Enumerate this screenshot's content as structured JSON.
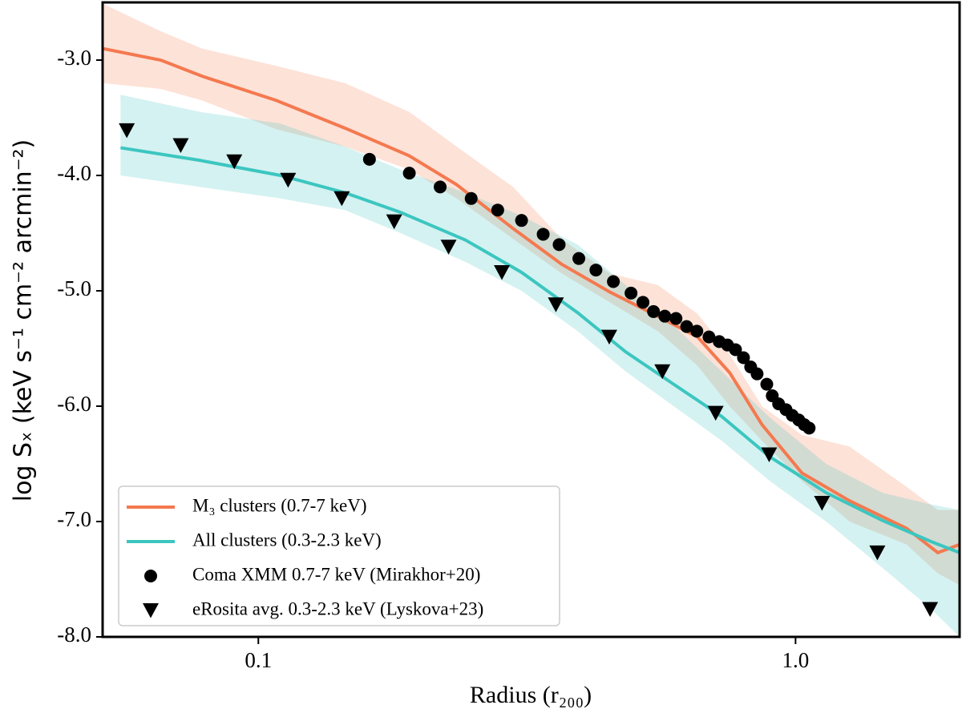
{
  "chart_data": {
    "type": "line",
    "x_label": "Radius (r₂₀₀)",
    "y_label": "log Sₓ (keV s⁻¹ cm⁻² arcmin⁻²)",
    "xscale": "log",
    "xlim": [
      0.0513,
      2.02
    ],
    "ylim": [
      -8.0,
      -2.5
    ],
    "xticks": [
      0.1,
      {
        "value": 1,
        "label": "1.0"
      }
    ],
    "yticks": [
      {
        "value": -3,
        "label": "-3.0"
      },
      {
        "value": -4,
        "label": "-4.0"
      },
      {
        "value": -5,
        "label": "-5.0"
      },
      {
        "value": -6,
        "label": "-6.0"
      },
      {
        "value": -7,
        "label": "-7.0"
      },
      {
        "value": -8,
        "label": "-8.0"
      }
    ],
    "legend": "lower left",
    "series": [
      {
        "name": "M₃ clusters (0.7-7 keV)",
        "color": "#f4794f",
        "marker": "line",
        "x": [
          0.0513,
          0.0658,
          0.0786,
          0.108,
          0.145,
          0.191,
          0.234,
          0.298,
          0.367,
          0.451,
          0.554,
          0.657,
          0.754,
          0.866,
          1.028,
          1.26,
          1.61,
          1.84,
          2.02
        ],
        "values": [
          -2.9,
          -3.0,
          -3.14,
          -3.35,
          -3.59,
          -3.83,
          -4.08,
          -4.46,
          -4.77,
          -5.01,
          -5.22,
          -5.4,
          -5.71,
          -6.16,
          -6.58,
          -6.82,
          -7.06,
          -7.27,
          -7.2
        ],
        "upper": [
          -2.51,
          -2.75,
          -2.9,
          -3.05,
          -3.2,
          -3.45,
          -3.75,
          -4.1,
          -4.55,
          -4.85,
          -4.95,
          -5.2,
          -5.55,
          -6.0,
          -6.25,
          -6.35,
          -6.7,
          -6.9,
          -6.9
        ],
        "lower": [
          -3.2,
          -3.25,
          -3.35,
          -3.6,
          -3.75,
          -3.95,
          -4.2,
          -4.55,
          -4.85,
          -5.1,
          -5.35,
          -5.65,
          -6.0,
          -6.3,
          -6.65,
          -7.0,
          -7.2,
          -7.45,
          -7.55
        ]
      },
      {
        "name": "All clusters (0.3-2.3 keV)",
        "color": "#3cc6c0",
        "marker": "line",
        "x": [
          0.0554,
          0.078,
          0.11,
          0.145,
          0.184,
          0.243,
          0.309,
          0.393,
          0.483,
          0.593,
          0.729,
          0.896,
          1.14,
          1.45,
          1.78,
          2.02
        ],
        "values": [
          -3.76,
          -3.87,
          -4.0,
          -4.15,
          -4.32,
          -4.56,
          -4.84,
          -5.19,
          -5.53,
          -5.81,
          -6.09,
          -6.44,
          -6.75,
          -6.99,
          -7.17,
          -7.27
        ],
        "upper": [
          -3.3,
          -3.45,
          -3.55,
          -3.75,
          -3.95,
          -4.15,
          -4.35,
          -4.6,
          -4.95,
          -5.3,
          -5.7,
          -6.1,
          -6.5,
          -6.75,
          -6.85,
          -6.9
        ],
        "lower": [
          -4.0,
          -4.1,
          -4.2,
          -4.3,
          -4.5,
          -4.75,
          -5.0,
          -5.35,
          -5.7,
          -6.0,
          -6.3,
          -6.65,
          -7.0,
          -7.4,
          -7.75,
          -8.0
        ]
      },
      {
        "name": "Coma XMM 0.7-7 keV (Mirakhor+20)",
        "color": "#000000",
        "marker": "circle",
        "x": [
          0.161,
          0.191,
          0.218,
          0.249,
          0.279,
          0.309,
          0.339,
          0.363,
          0.395,
          0.425,
          0.458,
          0.494,
          0.52,
          0.544,
          0.571,
          0.599,
          0.627,
          0.655,
          0.69,
          0.721,
          0.747,
          0.773,
          0.8,
          0.825,
          0.848,
          0.884,
          0.905,
          0.93,
          0.96,
          0.986,
          1.014,
          1.038,
          1.06
        ],
        "values": [
          -3.86,
          -3.98,
          -4.1,
          -4.2,
          -4.3,
          -4.39,
          -4.51,
          -4.6,
          -4.72,
          -4.82,
          -4.92,
          -5.02,
          -5.1,
          -5.18,
          -5.22,
          -5.24,
          -5.31,
          -5.35,
          -5.4,
          -5.44,
          -5.47,
          -5.51,
          -5.58,
          -5.66,
          -5.72,
          -5.81,
          -5.91,
          -5.98,
          -6.03,
          -6.08,
          -6.12,
          -6.16,
          -6.19
        ]
      },
      {
        "name": "eRosita avg. 0.3-2.3 keV (Lyskova+23)",
        "color": "#000000",
        "marker": "triangle",
        "x": [
          0.0569,
          0.0717,
          0.0902,
          0.1136,
          0.143,
          0.179,
          0.226,
          0.284,
          0.358,
          0.45,
          0.565,
          0.71,
          0.893,
          1.12,
          1.42,
          1.78
        ],
        "values": [
          -3.61,
          -3.74,
          -3.88,
          -4.04,
          -4.2,
          -4.4,
          -4.62,
          -4.84,
          -5.12,
          -5.4,
          -5.7,
          -6.06,
          -6.42,
          -6.84,
          -7.27,
          -7.76
        ]
      }
    ]
  }
}
